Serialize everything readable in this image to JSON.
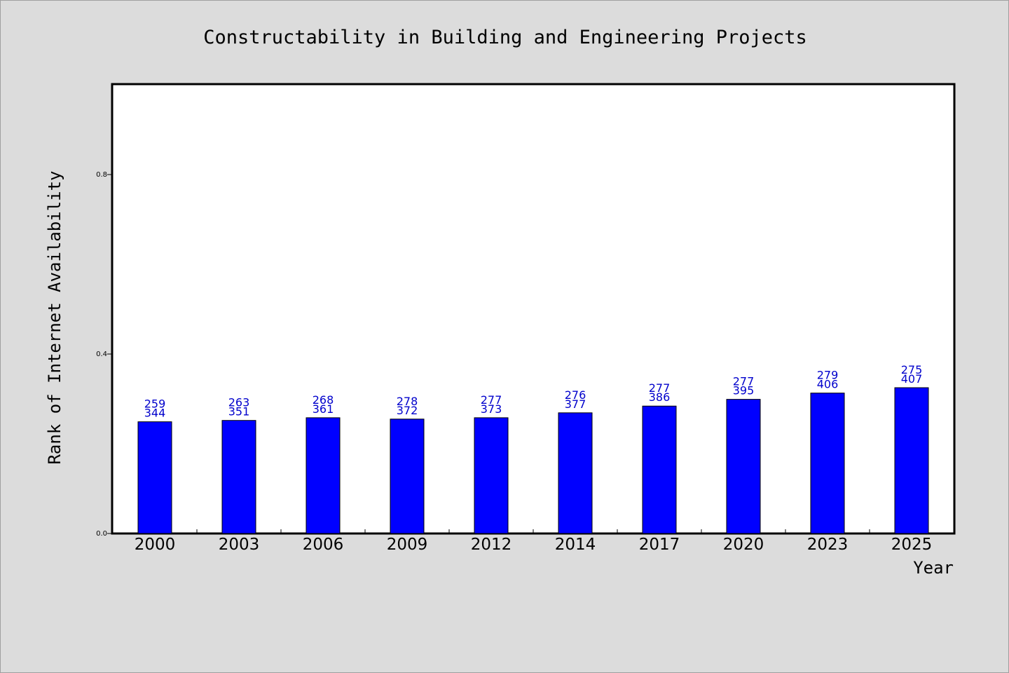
{
  "chart_data": {
    "type": "bar",
    "title": "Constructability in Building and Engineering Projects",
    "xlabel": "Year",
    "ylabel": "Rank of Internet Availability",
    "categories": [
      "2000",
      "2003",
      "2006",
      "2009",
      "2012",
      "2014",
      "2017",
      "2020",
      "2023",
      "2025"
    ],
    "values": [
      0.249,
      0.252,
      0.258,
      0.255,
      0.258,
      0.269,
      0.284,
      0.299,
      0.313,
      0.325
    ],
    "bar_labels_top": [
      "259",
      "263",
      "268",
      "278",
      "277",
      "276",
      "277",
      "277",
      "279",
      "275"
    ],
    "bar_labels_bottom": [
      "344",
      "351",
      "361",
      "372",
      "373",
      "377",
      "386",
      "395",
      "406",
      "407"
    ],
    "ylim": [
      0,
      1.0
    ],
    "yticks": [
      0.0,
      0.4,
      0.8
    ],
    "ytick_labels": [
      "0.0",
      "0.4",
      "0.8"
    ],
    "grid": false,
    "legend": "none",
    "colors": {
      "bar": "#0000ff",
      "bar_label": "#0000cc",
      "plot_background": "#ffffff",
      "figure_background": "#dcdcdc"
    }
  }
}
